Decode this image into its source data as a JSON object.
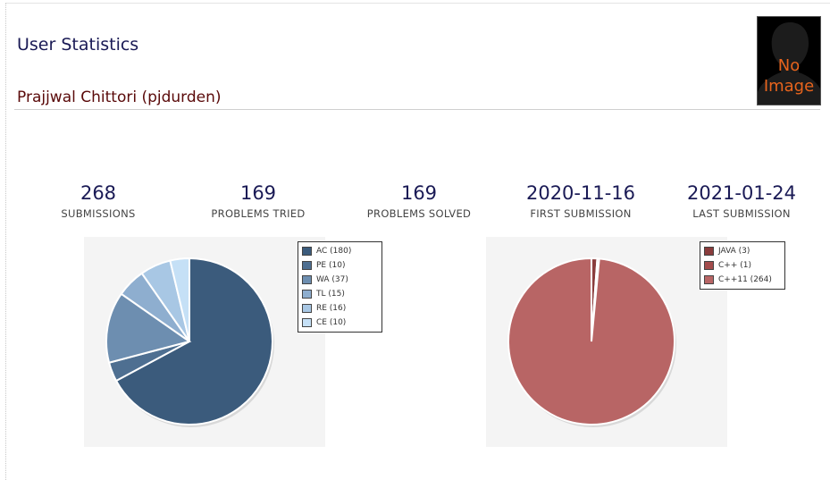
{
  "header": {
    "title": "User Statistics",
    "user_name": "Prajjwal Chittori (pjdurden)"
  },
  "avatar": {
    "line1": "No",
    "line2": "Image"
  },
  "stats": [
    {
      "value": "268",
      "label": "SUBMISSIONS"
    },
    {
      "value": "169",
      "label": "PROBLEMS TRIED"
    },
    {
      "value": "169",
      "label": "PROBLEMS SOLVED"
    },
    {
      "value": "2020-11-16",
      "label": "FIRST SUBMISSION"
    },
    {
      "value": "2021-01-24",
      "label": "LAST SUBMISSION"
    }
  ],
  "chart_data": [
    {
      "type": "pie",
      "title": "",
      "categories": [
        "AC",
        "PE",
        "WA",
        "TL",
        "RE",
        "CE"
      ],
      "values": [
        180,
        10,
        37,
        15,
        16,
        10
      ],
      "legend_labels": [
        "AC (180)",
        "PE (10)",
        "WA (37)",
        "TL (15)",
        "RE (16)",
        "CE (10)"
      ],
      "colors": [
        "#3b5b7c",
        "#4e6f91",
        "#6d8eb0",
        "#8eaecf",
        "#a8c7e4",
        "#c5e0f6"
      ],
      "legend_position": "top-right"
    },
    {
      "type": "pie",
      "title": "",
      "categories": [
        "JAVA",
        "C++",
        "C++11"
      ],
      "values": [
        3,
        1,
        264
      ],
      "legend_labels": [
        "JAVA (3)",
        "C++ (1)",
        "C++11 (264)"
      ],
      "colors": [
        "#8a3c3c",
        "#a34c4c",
        "#b86565"
      ],
      "legend_position": "top-right"
    }
  ]
}
